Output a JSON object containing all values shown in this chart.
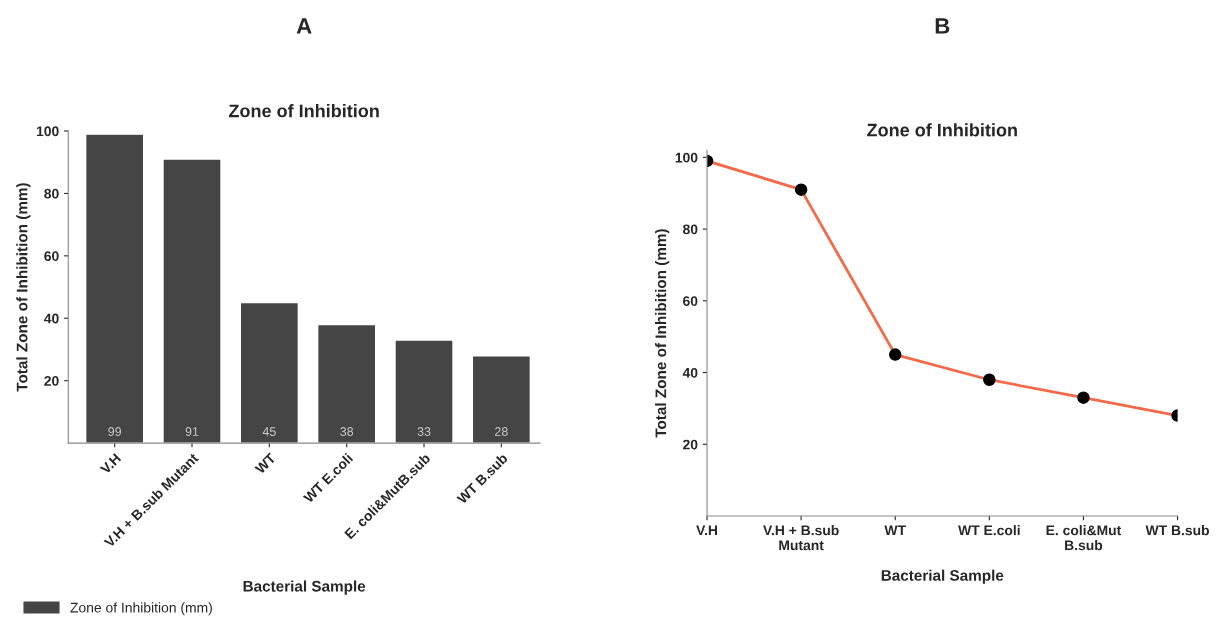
{
  "chart_data": [
    {
      "type": "bar",
      "title": "Zone of Inhibition",
      "xlabel": "Bacterial Sample",
      "ylabel": "Total Zone of Inhibition (mm)",
      "annotations": [
        "A"
      ],
      "categories": [
        "V.H",
        "V.H + B.sub Mutant",
        "WT",
        "WT E.coli",
        "E. coli&MutB.sub",
        "WT B.sub"
      ],
      "series": [
        {
          "name": "Zone of Inhibition (mm)",
          "color": "#454545",
          "values": [
            99,
            91,
            45,
            38,
            33,
            28
          ]
        }
      ],
      "ylim": [
        0,
        100
      ],
      "yticks": [
        20,
        40,
        60,
        80,
        100
      ],
      "data_labels": true,
      "legend": "bottom left",
      "grid": false
    },
    {
      "type": "line",
      "title": "Zone of Inhibition",
      "xlabel": "Bacterial Sample",
      "ylabel": "Total Zone of Inhibition (mm)",
      "annotations": [
        "B"
      ],
      "categories": [
        "V.H",
        "V.H + B.sub\nMutant",
        "WT",
        "WT E.coli",
        "E. coli&Mut\nB.sub",
        "WT B.sub"
      ],
      "values": [
        99,
        91,
        45,
        38,
        33,
        28
      ],
      "color": "#f4694a",
      "marker": "circle",
      "ylim": [
        0,
        102
      ],
      "yticks": [
        20,
        40,
        60,
        80,
        100
      ],
      "grid": false
    }
  ]
}
